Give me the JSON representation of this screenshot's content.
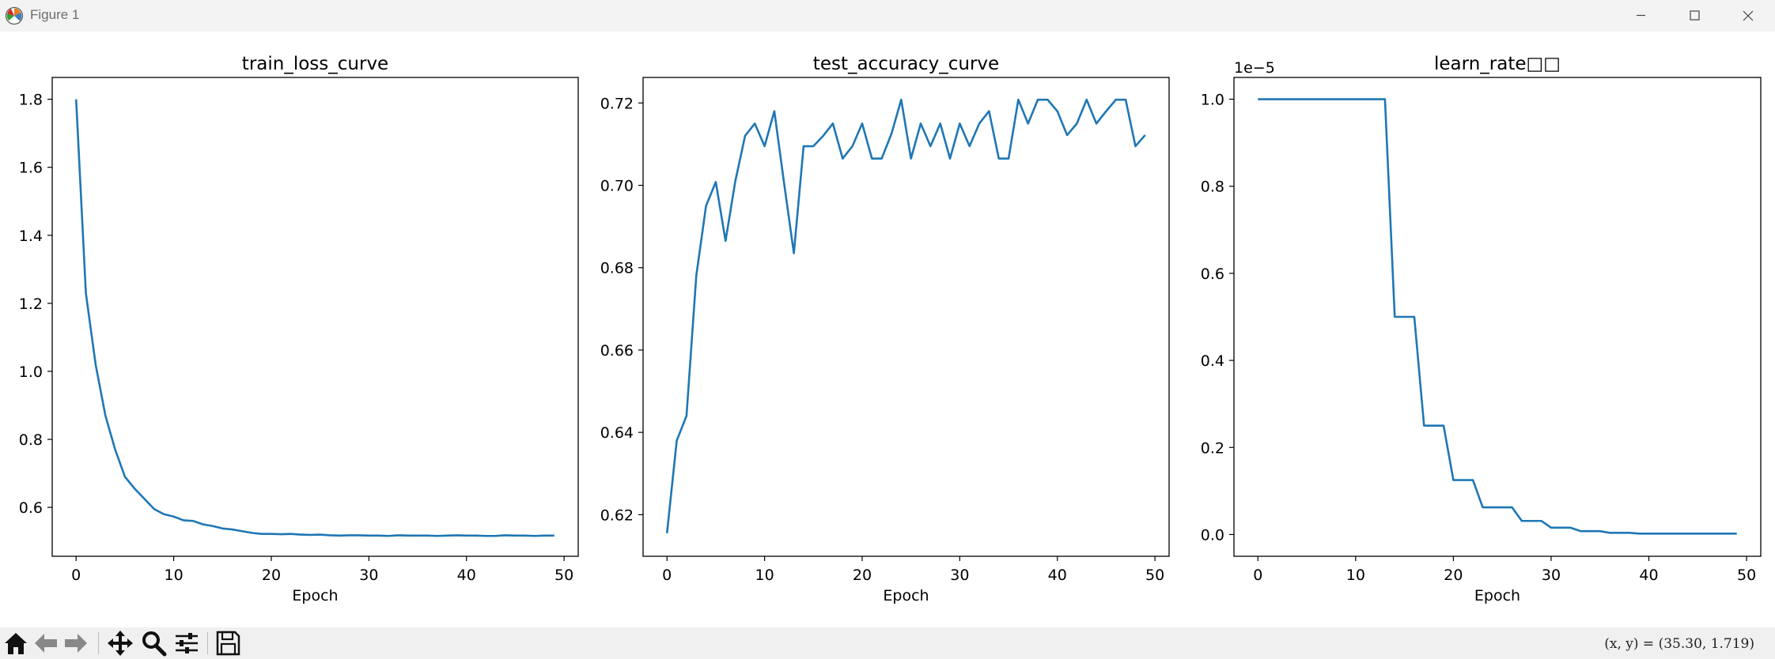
{
  "window": {
    "title": "Figure 1"
  },
  "toolbar": {
    "buttons": [
      "home-icon",
      "back-arrow-icon",
      "forward-arrow-icon",
      "pan-icon",
      "zoom-icon",
      "configure-subplots-icon",
      "save-icon"
    ],
    "coords": "(x, y) = (35.30, 1.719)"
  },
  "colors": {
    "line": "#1f77b4",
    "titlebar": "#f3f3f3",
    "toolbar": "#f0f0f0"
  },
  "chart_data": [
    {
      "type": "line",
      "title": "train_loss_curve",
      "xlabel": "Epoch",
      "ylabel": "",
      "xlim": [
        -2.45,
        51.45
      ],
      "ylim": [
        0.4562,
        1.8642
      ],
      "xticks": [
        0,
        10,
        20,
        30,
        40,
        50
      ],
      "xtick_labels": [
        "0",
        "10",
        "20",
        "30",
        "40",
        "50"
      ],
      "yticks": [
        0.6,
        0.8,
        1.0,
        1.2,
        1.4,
        1.6,
        1.8
      ],
      "ytick_labels": [
        "0.6",
        "0.8",
        "1.0",
        "1.2",
        "1.4",
        "1.6",
        "1.8"
      ],
      "offset_text": "",
      "grid": false,
      "series": [
        {
          "x": [
            0,
            1,
            2,
            3,
            4,
            5,
            6,
            7,
            8,
            9,
            10,
            11,
            12,
            13,
            14,
            15,
            16,
            17,
            18,
            19,
            20,
            21,
            22,
            23,
            24,
            25,
            26,
            27,
            28,
            29,
            30,
            31,
            32,
            33,
            34,
            35,
            36,
            37,
            38,
            39,
            40,
            41,
            42,
            43,
            44,
            45,
            46,
            47,
            48,
            49
          ],
          "values": [
            1.8,
            1.23,
            1.02,
            0.87,
            0.77,
            0.69,
            0.655,
            0.625,
            0.595,
            0.58,
            0.573,
            0.562,
            0.56,
            0.55,
            0.545,
            0.538,
            0.535,
            0.53,
            0.525,
            0.522,
            0.522,
            0.521,
            0.522,
            0.52,
            0.519,
            0.52,
            0.518,
            0.517,
            0.518,
            0.518,
            0.517,
            0.517,
            0.516,
            0.518,
            0.517,
            0.517,
            0.517,
            0.516,
            0.517,
            0.518,
            0.517,
            0.517,
            0.516,
            0.516,
            0.518,
            0.517,
            0.517,
            0.516,
            0.517,
            0.517
          ]
        }
      ]
    },
    {
      "type": "line",
      "title": "test_accuracy_curve",
      "xlabel": "Epoch",
      "ylabel": "",
      "xlim": [
        -2.45,
        51.45
      ],
      "ylim": [
        0.6099,
        0.7262
      ],
      "xticks": [
        0,
        10,
        20,
        30,
        40,
        50
      ],
      "xtick_labels": [
        "0",
        "10",
        "20",
        "30",
        "40",
        "50"
      ],
      "yticks": [
        0.62,
        0.64,
        0.66,
        0.68,
        0.7,
        0.72
      ],
      "ytick_labels": [
        "0.62",
        "0.64",
        "0.66",
        "0.68",
        "0.70",
        "0.72"
      ],
      "offset_text": "",
      "grid": false,
      "series": [
        {
          "x": [
            0,
            1,
            2,
            3,
            4,
            5,
            6,
            7,
            8,
            9,
            10,
            11,
            12,
            13,
            14,
            15,
            16,
            17,
            18,
            19,
            20,
            21,
            22,
            23,
            24,
            25,
            26,
            27,
            28,
            29,
            30,
            31,
            32,
            33,
            34,
            35,
            36,
            37,
            38,
            39,
            40,
            41,
            42,
            43,
            44,
            45,
            46,
            47,
            48,
            49
          ],
          "values": [
            0.6155,
            0.638,
            0.644,
            0.678,
            0.695,
            0.7008,
            0.6865,
            0.701,
            0.712,
            0.715,
            0.7095,
            0.718,
            0.7005,
            0.6835,
            0.7095,
            0.7095,
            0.712,
            0.715,
            0.7065,
            0.7095,
            0.715,
            0.7065,
            0.7065,
            0.7125,
            0.7208,
            0.7065,
            0.715,
            0.7095,
            0.715,
            0.7065,
            0.715,
            0.7095,
            0.715,
            0.718,
            0.7065,
            0.7065,
            0.7208,
            0.715,
            0.7208,
            0.7208,
            0.718,
            0.7122,
            0.715,
            0.7208,
            0.715,
            0.718,
            0.7208,
            0.7208,
            0.7095,
            0.7122
          ]
        }
      ]
    },
    {
      "type": "line",
      "title": "learn_rate□□",
      "xlabel": "Epoch",
      "ylabel": "",
      "xlim": [
        -2.45,
        51.45
      ],
      "ylim": [
        -0.05,
        1.05
      ],
      "xticks": [
        0,
        10,
        20,
        30,
        40,
        50
      ],
      "xtick_labels": [
        "0",
        "10",
        "20",
        "30",
        "40",
        "50"
      ],
      "yticks": [
        0.0,
        0.2,
        0.4,
        0.6,
        0.8,
        1.0
      ],
      "ytick_labels": [
        "0.0",
        "0.2",
        "0.4",
        "0.6",
        "0.8",
        "1.0"
      ],
      "offset_text": "1e−5",
      "grid": false,
      "series": [
        {
          "x": [
            0,
            1,
            2,
            3,
            4,
            5,
            6,
            7,
            8,
            9,
            10,
            11,
            12,
            13,
            14,
            15,
            16,
            17,
            18,
            19,
            20,
            21,
            22,
            23,
            24,
            25,
            26,
            27,
            28,
            29,
            30,
            31,
            32,
            33,
            34,
            35,
            36,
            37,
            38,
            39,
            40,
            41,
            42,
            43,
            44,
            45,
            46,
            47,
            48,
            49
          ],
          "values": [
            1,
            1,
            1,
            1,
            1,
            1,
            1,
            1,
            1,
            1,
            1,
            1,
            1,
            1,
            0.5,
            0.5,
            0.5,
            0.25,
            0.25,
            0.25,
            0.125,
            0.125,
            0.125,
            0.0625,
            0.0625,
            0.0625,
            0.0625,
            0.03125,
            0.03125,
            0.03125,
            0.015625,
            0.015625,
            0.015625,
            0.0078,
            0.0078,
            0.0078,
            0.0039,
            0.0039,
            0.0039,
            0.002,
            0.002,
            0.002,
            0.002,
            0.002,
            0.002,
            0.002,
            0.002,
            0.002,
            0.002,
            0.002
          ]
        }
      ]
    }
  ]
}
